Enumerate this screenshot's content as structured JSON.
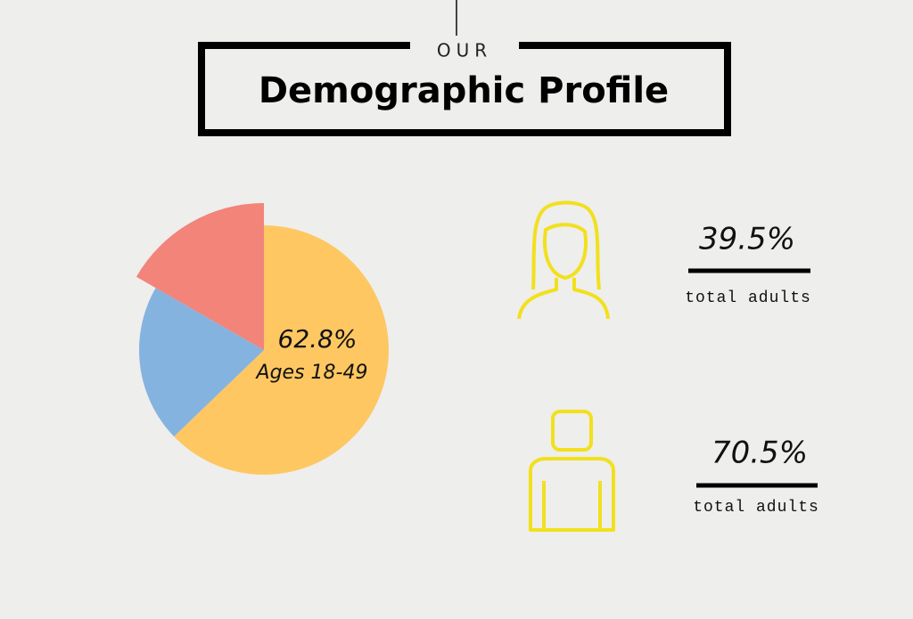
{
  "header": {
    "kicker": "OUR",
    "title": "Demographic Profile"
  },
  "chart_data": {
    "type": "pie",
    "categories": [
      "Ages 18-49",
      null,
      null
    ],
    "values": [
      62.8,
      20.5,
      16.7
    ],
    "value_labels": [
      "62.8%",
      null,
      null
    ],
    "colors": [
      "#fec762",
      "#85b3df",
      "#f2847a"
    ]
  },
  "stats": [
    {
      "value": "39.5%",
      "label": "total adults"
    },
    {
      "value": "70.5%",
      "label": "total adults"
    }
  ]
}
